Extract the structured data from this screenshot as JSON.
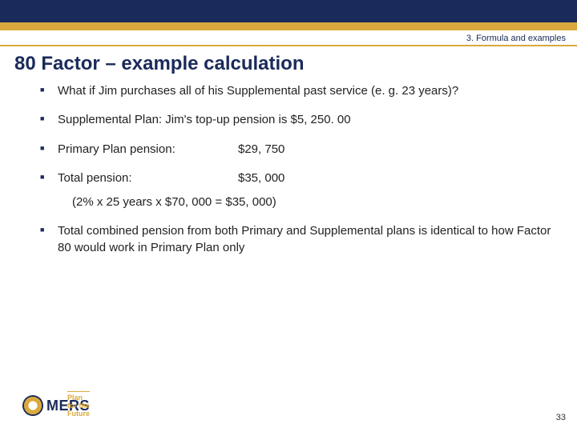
{
  "breadcrumb": "3. Formula and examples",
  "title": "80 Factor – example calculation",
  "bullets": [
    {
      "text": "What if Jim purchases all of his Supplemental past service (e. g. 23 years)?"
    },
    {
      "text": "Supplemental Plan: Jim's top-up pension is $5, 250. 00"
    },
    {
      "label": "Primary Plan pension:",
      "value": "$29, 750"
    },
    {
      "label": "Total pension:",
      "value": "$35, 000"
    }
  ],
  "formula": "(2% x 25 years x $70, 000 = $35, 000)",
  "closing": "Total combined pension from both Primary and Supplemental plans is identical to how Factor 80 would work in Primary Plan only",
  "logo": {
    "text": "MERS",
    "tagline": "Plan for the Future"
  },
  "page": "33",
  "colors": {
    "navy": "#1a2a5a",
    "gold": "#d9a93d",
    "text": "#222222",
    "bg": "#ffffff"
  }
}
